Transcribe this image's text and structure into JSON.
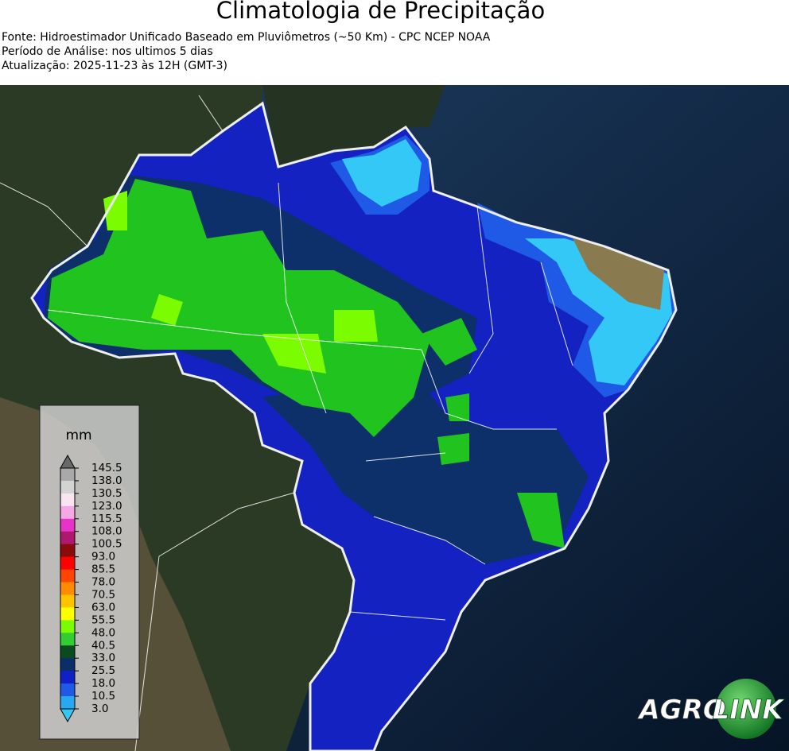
{
  "header": {
    "title": "Climatologia de Precipitação",
    "lines": [
      "Fonte: Hidroestimador Unificado Baseado em Pluviômetros (~50 Km) - CPC NCEP NOAA",
      "Período de Análise: nos ultimos 5 dias",
      "Atualização: 2025-11-23 às 12H (GMT-3)"
    ]
  },
  "legend": {
    "unit": "mm",
    "labels": [
      "145.5",
      "138.0",
      "130.5",
      "123.0",
      "115.5",
      "108.0",
      "100.5",
      "93.0",
      "85.5",
      "78.0",
      "70.5",
      "63.0",
      "55.5",
      "48.0",
      "40.5",
      "33.0",
      "25.5",
      "18.0",
      "10.5",
      "3.0"
    ],
    "colors": [
      "#a9a9a9",
      "#d3d3d3",
      "#fbe4f2",
      "#f7a8e4",
      "#e933c8",
      "#b0176e",
      "#8b0a0a",
      "#ff0000",
      "#ff4500",
      "#ff8c00",
      "#ffc400",
      "#ffff00",
      "#7cfc00",
      "#32cd32",
      "#0b4a1e",
      "#0b2e6b",
      "#1020c8",
      "#1e5ae6",
      "#28a8f0"
    ],
    "arrow_colors": [
      "#696969",
      "#33c8f5"
    ]
  },
  "logo": {
    "left": "AGRO",
    "right": "LINK"
  }
}
